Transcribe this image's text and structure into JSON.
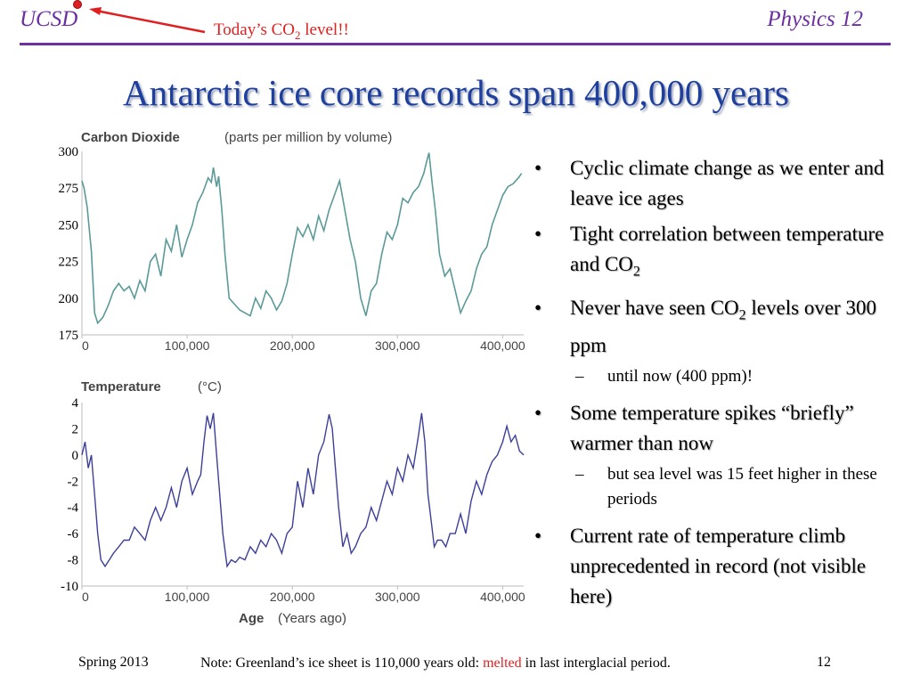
{
  "header": {
    "left": "UCSD",
    "right": "Physics 12",
    "callout": {
      "text_before": "Today’s CO",
      "sub": "2",
      "text_after": " level!!"
    }
  },
  "title": "Antarctic ice core records span 400,000 years",
  "bullets": [
    {
      "parts": [
        "Cyclic climate change as we enter and leave ice ages"
      ]
    },
    {
      "pre": "Tight correlation between temperature and CO",
      "sub": "2",
      "post": ""
    },
    {
      "pre": "Never have seen CO",
      "sub": "2",
      "post": " levels over 300 ppm",
      "subitem": "until now (400 ppm)!"
    },
    {
      "pre": "Some temperature spikes “briefly” warmer than now",
      "sub": "",
      "post": "",
      "subitem": "but sea level was 15 feet higher in these periods"
    },
    {
      "pre": "Current rate of temperature climb unprecedented in record (not visible here)",
      "sub": "",
      "post": ""
    }
  ],
  "footer": {
    "left": "Spring 2013",
    "note_before": "Note: Greenland’s ice sheet is 110,000 years old: ",
    "note_red": "melted",
    "note_after": " in last interglacial period.",
    "page": "12"
  },
  "colors": {
    "title": "#1e3f9e",
    "header": "#6b2fa0",
    "co2_line": "#5a9a98",
    "temp_line": "#3c3f9a",
    "accent_red": "#e02020"
  },
  "chart_data": [
    {
      "type": "line",
      "title": "Carbon Dioxide",
      "subtitle": "(parts per million by volume)",
      "xlabel": "",
      "xlim": [
        0,
        420000
      ],
      "xticks": [
        "0",
        "100,000",
        "200,000",
        "300,000",
        "400,000"
      ],
      "xtick_values": [
        0,
        100000,
        200000,
        300000,
        400000
      ],
      "ylim": [
        175,
        300
      ],
      "yticks": [
        "300",
        "275",
        "250",
        "225",
        "200",
        "175"
      ],
      "ytick_values": [
        300,
        275,
        250,
        225,
        200,
        175
      ],
      "series": [
        {
          "x": [
            0,
            2000,
            5000,
            9000,
            12000,
            15000,
            20000,
            25000,
            30000,
            35000,
            40000,
            45000,
            50000,
            55000,
            60000,
            65000,
            70000,
            75000,
            80000,
            85000,
            90000,
            95000,
            100000,
            105000,
            110000,
            115000,
            120000,
            123000,
            125000,
            128000,
            130000,
            133000,
            136000,
            140000,
            145000,
            150000,
            155000,
            160000,
            165000,
            170000,
            175000,
            180000,
            185000,
            190000,
            195000,
            200000,
            205000,
            210000,
            215000,
            220000,
            225000,
            230000,
            235000,
            240000,
            245000,
            250000,
            255000,
            260000,
            265000,
            270000,
            275000,
            280000,
            285000,
            290000,
            295000,
            300000,
            305000,
            310000,
            315000,
            320000,
            325000,
            328000,
            330000,
            333000,
            336000,
            340000,
            345000,
            350000,
            355000,
            360000,
            365000,
            370000,
            375000,
            380000,
            385000,
            390000,
            395000,
            400000,
            405000,
            410000,
            415000,
            418000
          ],
          "y": [
            280,
            275,
            262,
            232,
            190,
            183,
            187,
            195,
            205,
            210,
            205,
            208,
            200,
            212,
            205,
            225,
            230,
            215,
            240,
            232,
            250,
            228,
            240,
            250,
            265,
            272,
            282,
            279,
            289,
            276,
            283,
            260,
            230,
            200,
            196,
            192,
            190,
            188,
            200,
            193,
            205,
            200,
            192,
            198,
            210,
            230,
            248,
            242,
            250,
            240,
            256,
            246,
            260,
            270,
            280,
            260,
            240,
            225,
            200,
            188,
            205,
            210,
            230,
            245,
            240,
            250,
            268,
            265,
            272,
            276,
            285,
            294,
            299,
            278,
            260,
            230,
            215,
            220,
            205,
            190,
            198,
            205,
            220,
            230,
            235,
            250,
            260,
            270,
            276,
            278,
            282,
            285
          ]
        }
      ]
    },
    {
      "type": "line",
      "title": "Temperature",
      "subtitle": "(°C)",
      "xlabel": "Age",
      "xlabel_sub": "(Years ago)",
      "xlim": [
        0,
        420000
      ],
      "xticks": [
        "0",
        "100,000",
        "200,000",
        "300,000",
        "400,000"
      ],
      "xtick_values": [
        0,
        100000,
        200000,
        300000,
        400000
      ],
      "ylim": [
        -10,
        4
      ],
      "yticks": [
        "4",
        "2",
        "0",
        "-2",
        "-4",
        "-6",
        "-8",
        "-10"
      ],
      "ytick_values": [
        4,
        2,
        0,
        -2,
        -4,
        -6,
        -8,
        -10
      ],
      "series": [
        {
          "x": [
            0,
            3000,
            6000,
            9000,
            12000,
            15000,
            18000,
            22000,
            26000,
            30000,
            35000,
            40000,
            45000,
            50000,
            55000,
            60000,
            65000,
            70000,
            75000,
            80000,
            85000,
            90000,
            95000,
            100000,
            105000,
            110000,
            113000,
            116000,
            119000,
            122000,
            125000,
            128000,
            131000,
            134000,
            138000,
            142000,
            146000,
            150000,
            155000,
            160000,
            165000,
            170000,
            175000,
            180000,
            185000,
            190000,
            195000,
            200000,
            205000,
            210000,
            215000,
            220000,
            225000,
            230000,
            235000,
            238000,
            241000,
            244000,
            248000,
            252000,
            256000,
            260000,
            265000,
            270000,
            275000,
            280000,
            285000,
            290000,
            295000,
            300000,
            305000,
            310000,
            315000,
            320000,
            323000,
            326000,
            329000,
            332000,
            335000,
            338000,
            342000,
            346000,
            350000,
            355000,
            360000,
            365000,
            370000,
            375000,
            380000,
            385000,
            390000,
            395000,
            400000,
            404000,
            408000,
            412000,
            416000,
            420000
          ],
          "y": [
            0,
            1,
            -1,
            0,
            -3,
            -6,
            -8,
            -8.5,
            -8,
            -7.5,
            -7,
            -6.5,
            -6.5,
            -5.5,
            -6,
            -6.5,
            -5,
            -4,
            -5,
            -4,
            -2.5,
            -4,
            -2,
            -1,
            -3,
            -2,
            -1.5,
            1,
            3,
            2,
            3.2,
            0,
            -3,
            -6,
            -8.5,
            -8,
            -8.2,
            -7.8,
            -8,
            -7,
            -7.5,
            -6.5,
            -7,
            -6,
            -6.5,
            -7.5,
            -6,
            -5.5,
            -2,
            -4,
            -1,
            -3,
            0,
            1,
            3.1,
            2,
            -1,
            -4,
            -7,
            -6,
            -7.5,
            -7,
            -6,
            -5.5,
            -4,
            -5,
            -3.5,
            -2,
            -3,
            -1,
            -2,
            0,
            -1,
            1.5,
            3.2,
            1,
            -3,
            -5,
            -7,
            -6.5,
            -6.5,
            -7,
            -6,
            -6,
            -4.5,
            -6,
            -3.5,
            -2,
            -3,
            -1.5,
            -0.5,
            0,
            1,
            2.2,
            1,
            1.5,
            0.3,
            0
          ]
        }
      ]
    }
  ]
}
